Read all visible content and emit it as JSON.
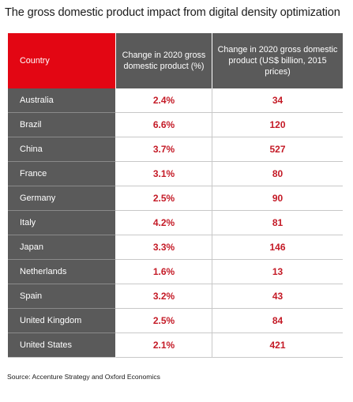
{
  "title": "The gross domestic product impact from digital density optimization",
  "table": {
    "headers": {
      "country": "Country",
      "pct": "Change in 2020 gross domestic product (%)",
      "usd": "Change in 2020 gross domestic product (US$ billion, 2015 prices)"
    },
    "rows": [
      {
        "country": "Australia",
        "pct": "2.4%",
        "usd": "34"
      },
      {
        "country": "Brazil",
        "pct": "6.6%",
        "usd": "120"
      },
      {
        "country": "China",
        "pct": "3.7%",
        "usd": "527"
      },
      {
        "country": "France",
        "pct": "3.1%",
        "usd": "80"
      },
      {
        "country": "Germany",
        "pct": "2.5%",
        "usd": "90"
      },
      {
        "country": "Italy",
        "pct": "4.2%",
        "usd": "81"
      },
      {
        "country": "Japan",
        "pct": "3.3%",
        "usd": "146"
      },
      {
        "country": "Netherlands",
        "pct": "1.6%",
        "usd": "13"
      },
      {
        "country": "Spain",
        "pct": "3.2%",
        "usd": "43"
      },
      {
        "country": "United Kingdom",
        "pct": "2.5%",
        "usd": "84"
      },
      {
        "country": "United States",
        "pct": "2.1%",
        "usd": "421"
      }
    ]
  },
  "source": "Source: Accenture Strategy and Oxford Economics",
  "colors": {
    "accent_red": "#e30613",
    "value_red": "#c41a26",
    "header_gray": "#5a5a5a"
  },
  "chart_data": {
    "type": "table",
    "title": "The gross domestic product impact from digital density optimization",
    "columns": [
      "Country",
      "Change in 2020 gross domestic product (%)",
      "Change in 2020 gross domestic product (US$ billion, 2015 prices)"
    ],
    "categories": [
      "Australia",
      "Brazil",
      "China",
      "France",
      "Germany",
      "Italy",
      "Japan",
      "Netherlands",
      "Spain",
      "United Kingdom",
      "United States"
    ],
    "series": [
      {
        "name": "Change in 2020 gross domestic product (%)",
        "values": [
          2.4,
          6.6,
          3.7,
          3.1,
          2.5,
          4.2,
          3.3,
          1.6,
          3.2,
          2.5,
          2.1
        ]
      },
      {
        "name": "Change in 2020 gross domestic product (US$ billion, 2015 prices)",
        "values": [
          34,
          120,
          527,
          80,
          90,
          81,
          146,
          13,
          43,
          84,
          421
        ]
      }
    ]
  }
}
